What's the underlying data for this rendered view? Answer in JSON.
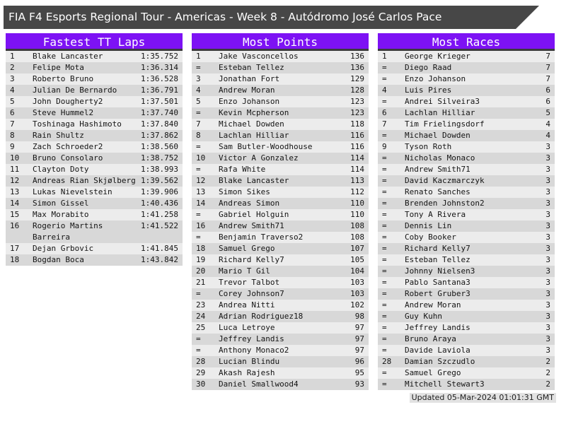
{
  "banner": {
    "title": "FIA F4 Esports Regional Tour - Americas - Week 8 - Autódromo José Carlos Pace"
  },
  "colors": {
    "accent_purple": "#7d12f4",
    "banner_gray": "#474747",
    "row_light": "#ececec",
    "row_dark": "#d8d8d8"
  },
  "tables": [
    {
      "title": "Fastest TT Laps",
      "rows": [
        {
          "rank": "1",
          "name": "Blake Lancaster",
          "value": "1:35.752"
        },
        {
          "rank": "2",
          "name": "Felipe Mota",
          "value": "1:36.314"
        },
        {
          "rank": "3",
          "name": "Roberto Bruno",
          "value": "1:36.528"
        },
        {
          "rank": "4",
          "name": "Julian De Bernardo",
          "value": "1:36.791"
        },
        {
          "rank": "5",
          "name": "John Dougherty2",
          "value": "1:37.501"
        },
        {
          "rank": "6",
          "name": "Steve Hummel2",
          "value": "1:37.740"
        },
        {
          "rank": "7",
          "name": "Toshinaga Hashimoto",
          "value": "1:37.840"
        },
        {
          "rank": "8",
          "name": "Rain Shultz",
          "value": "1:37.862"
        },
        {
          "rank": "9",
          "name": "Zach Schroeder2",
          "value": "1:38.560"
        },
        {
          "rank": "10",
          "name": "Bruno Consolaro",
          "value": "1:38.752"
        },
        {
          "rank": "11",
          "name": "Clayton Doty",
          "value": "1:38.993"
        },
        {
          "rank": "12",
          "name": "Andreas Rian Skjølberg",
          "value": "1:39.562"
        },
        {
          "rank": "13",
          "name": "Lukas Nievelstein",
          "value": "1:39.906"
        },
        {
          "rank": "14",
          "name": "Simon Gissel",
          "value": "1:40.436"
        },
        {
          "rank": "15",
          "name": "Max Morabito",
          "value": "1:41.258"
        },
        {
          "rank": "16",
          "name": "Rogerio Martins Barreira",
          "value": "1:41.522"
        },
        {
          "rank": "17",
          "name": "Dejan Grbovic",
          "value": "1:41.845"
        },
        {
          "rank": "18",
          "name": "Bogdan Boca",
          "value": "1:43.842"
        }
      ]
    },
    {
      "title": "Most Points",
      "rows": [
        {
          "rank": "1",
          "name": "Jake Vasconcellos",
          "value": "136"
        },
        {
          "rank": "=",
          "name": "Esteban Tellez",
          "value": "136"
        },
        {
          "rank": "3",
          "name": "Jonathan Fort",
          "value": "129"
        },
        {
          "rank": "4",
          "name": "Andrew Moran",
          "value": "128"
        },
        {
          "rank": "5",
          "name": "Enzo Johanson",
          "value": "123"
        },
        {
          "rank": "=",
          "name": "Kevin Mcpherson",
          "value": "123"
        },
        {
          "rank": "7",
          "name": "Michael Dowden",
          "value": "118"
        },
        {
          "rank": "8",
          "name": "Lachlan Hilliar",
          "value": "116"
        },
        {
          "rank": "=",
          "name": "Sam Butler-Woodhouse",
          "value": "116"
        },
        {
          "rank": "10",
          "name": "Victor A Gonzalez",
          "value": "114"
        },
        {
          "rank": "=",
          "name": "Rafa White",
          "value": "114"
        },
        {
          "rank": "12",
          "name": "Blake Lancaster",
          "value": "113"
        },
        {
          "rank": "13",
          "name": "Simon Sikes",
          "value": "112"
        },
        {
          "rank": "14",
          "name": "Andreas Simon",
          "value": "110"
        },
        {
          "rank": "=",
          "name": "Gabriel Holguin",
          "value": "110"
        },
        {
          "rank": "16",
          "name": "Andrew Smith71",
          "value": "108"
        },
        {
          "rank": "=",
          "name": "Benjamin Traverso2",
          "value": "108"
        },
        {
          "rank": "18",
          "name": "Samuel Grego",
          "value": "107"
        },
        {
          "rank": "19",
          "name": "Richard Kelly7",
          "value": "105"
        },
        {
          "rank": "20",
          "name": "Mario T Gil",
          "value": "104"
        },
        {
          "rank": "21",
          "name": "Trevor Talbot",
          "value": "103"
        },
        {
          "rank": "=",
          "name": "Corey Johnson7",
          "value": "103"
        },
        {
          "rank": "23",
          "name": "Andrea Nitti",
          "value": "102"
        },
        {
          "rank": "24",
          "name": "Adrian Rodriguez18",
          "value": "98"
        },
        {
          "rank": "25",
          "name": "Luca Letroye",
          "value": "97"
        },
        {
          "rank": "=",
          "name": "Jeffrey Landis",
          "value": "97"
        },
        {
          "rank": "=",
          "name": "Anthony Monaco2",
          "value": "97"
        },
        {
          "rank": "28",
          "name": "Lucian Blindu",
          "value": "96"
        },
        {
          "rank": "29",
          "name": "Akash Rajesh",
          "value": "95"
        },
        {
          "rank": "30",
          "name": "Daniel Smallwood4",
          "value": "93"
        }
      ]
    },
    {
      "title": "Most Races",
      "rows": [
        {
          "rank": "1",
          "name": "George Krieger",
          "value": "7"
        },
        {
          "rank": "=",
          "name": "Diego Raad",
          "value": "7"
        },
        {
          "rank": "=",
          "name": "Enzo Johanson",
          "value": "7"
        },
        {
          "rank": "4",
          "name": "Luis Pires",
          "value": "6"
        },
        {
          "rank": "=",
          "name": "Andrei Silveira3",
          "value": "6"
        },
        {
          "rank": "6",
          "name": "Lachlan Hilliar",
          "value": "5"
        },
        {
          "rank": "7",
          "name": "Tim Frielingsdorf",
          "value": "4"
        },
        {
          "rank": "=",
          "name": "Michael Dowden",
          "value": "4"
        },
        {
          "rank": "9",
          "name": "Tyson Roth",
          "value": "3"
        },
        {
          "rank": "=",
          "name": "Nicholas Monaco",
          "value": "3"
        },
        {
          "rank": "=",
          "name": "Andrew Smith71",
          "value": "3"
        },
        {
          "rank": "=",
          "name": "David Kaczmarczyk",
          "value": "3"
        },
        {
          "rank": "=",
          "name": "Renato Sanches",
          "value": "3"
        },
        {
          "rank": "=",
          "name": "Brenden Johnston2",
          "value": "3"
        },
        {
          "rank": "=",
          "name": "Tony A Rivera",
          "value": "3"
        },
        {
          "rank": "=",
          "name": "Dennis Lin",
          "value": "3"
        },
        {
          "rank": "=",
          "name": "Coby Booker",
          "value": "3"
        },
        {
          "rank": "=",
          "name": "Richard Kelly7",
          "value": "3"
        },
        {
          "rank": "=",
          "name": "Esteban Tellez",
          "value": "3"
        },
        {
          "rank": "=",
          "name": "Johnny Nielsen3",
          "value": "3"
        },
        {
          "rank": "=",
          "name": "Pablo Santana3",
          "value": "3"
        },
        {
          "rank": "=",
          "name": "Robert Gruber3",
          "value": "3"
        },
        {
          "rank": "=",
          "name": "Andrew Moran",
          "value": "3"
        },
        {
          "rank": "=",
          "name": "Guy Kuhn",
          "value": "3"
        },
        {
          "rank": "=",
          "name": "Jeffrey Landis",
          "value": "3"
        },
        {
          "rank": "=",
          "name": "Bruno Araya",
          "value": "3"
        },
        {
          "rank": "=",
          "name": "Davide Laviola",
          "value": "3"
        },
        {
          "rank": "28",
          "name": "Damian Szczudlo",
          "value": "2"
        },
        {
          "rank": "=",
          "name": "Samuel Grego",
          "value": "2"
        },
        {
          "rank": "=",
          "name": "Mitchell Stewart3",
          "value": "2"
        }
      ]
    }
  ],
  "footer": {
    "updated": "Updated 05-Mar-2024 01:01:31 GMT"
  }
}
